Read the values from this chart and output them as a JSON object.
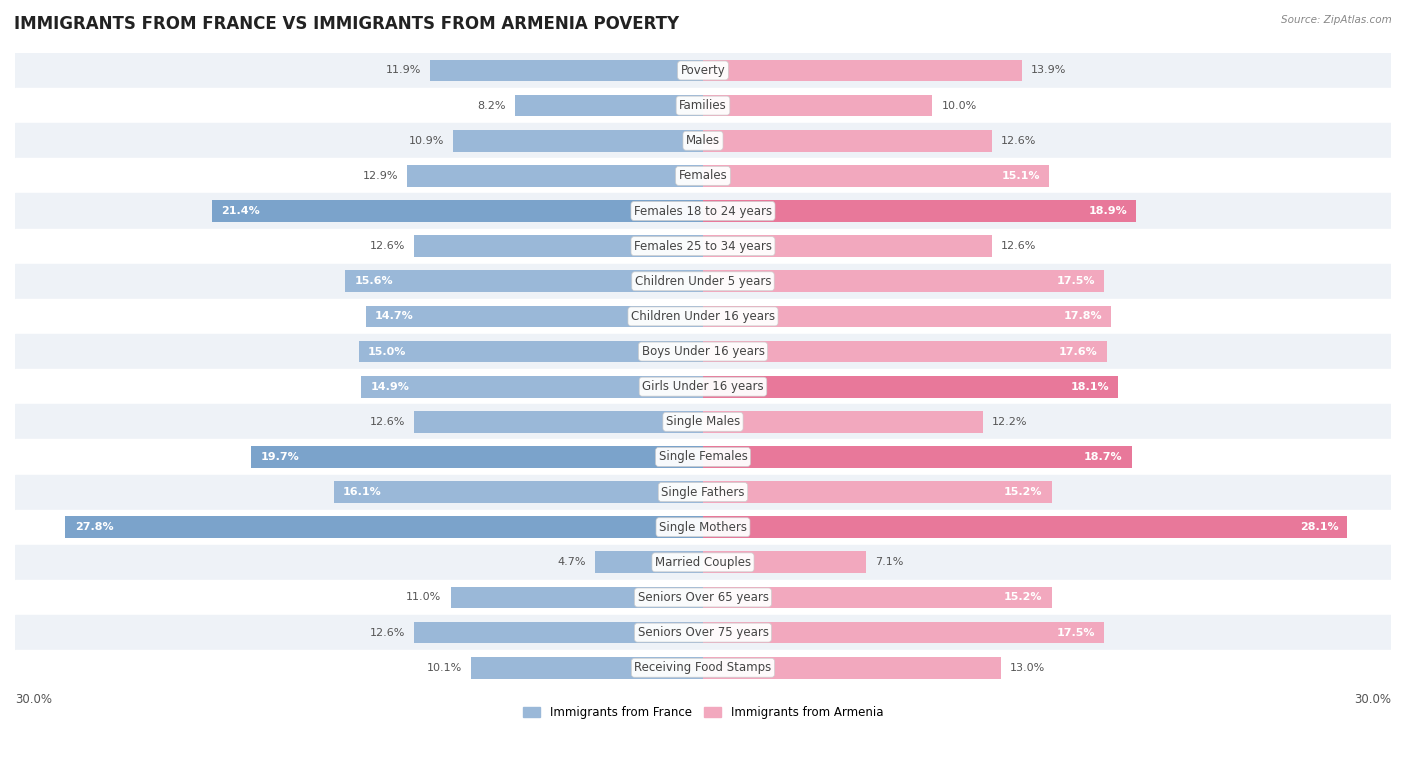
{
  "title": "IMMIGRANTS FROM FRANCE VS IMMIGRANTS FROM ARMENIA POVERTY",
  "source": "Source: ZipAtlas.com",
  "categories": [
    "Poverty",
    "Families",
    "Males",
    "Females",
    "Females 18 to 24 years",
    "Females 25 to 34 years",
    "Children Under 5 years",
    "Children Under 16 years",
    "Boys Under 16 years",
    "Girls Under 16 years",
    "Single Males",
    "Single Females",
    "Single Fathers",
    "Single Mothers",
    "Married Couples",
    "Seniors Over 65 years",
    "Seniors Over 75 years",
    "Receiving Food Stamps"
  ],
  "france_values": [
    11.9,
    8.2,
    10.9,
    12.9,
    21.4,
    12.6,
    15.6,
    14.7,
    15.0,
    14.9,
    12.6,
    19.7,
    16.1,
    27.8,
    4.7,
    11.0,
    12.6,
    10.1
  ],
  "armenia_values": [
    13.9,
    10.0,
    12.6,
    15.1,
    18.9,
    12.6,
    17.5,
    17.8,
    17.6,
    18.1,
    12.2,
    18.7,
    15.2,
    28.1,
    7.1,
    15.2,
    17.5,
    13.0
  ],
  "france_color_normal": "#9ab8d8",
  "france_color_highlight": "#7ba3cb",
  "armenia_color_normal": "#f2a8be",
  "armenia_color_highlight": "#e8789a",
  "background_color": "#ffffff",
  "row_odd_color": "#eef2f7",
  "row_even_color": "#ffffff",
  "bar_height": 0.62,
  "xlim": 30.0,
  "france_highlight_values": [
    21.4,
    19.7,
    27.8
  ],
  "armenia_highlight_values": [
    18.9,
    18.1,
    18.7,
    28.1
  ],
  "legend_france": "Immigrants from France",
  "legend_armenia": "Immigrants from Armenia",
  "title_fontsize": 12,
  "label_fontsize": 8.5,
  "value_fontsize": 8.0,
  "axis_fontsize": 8.5
}
